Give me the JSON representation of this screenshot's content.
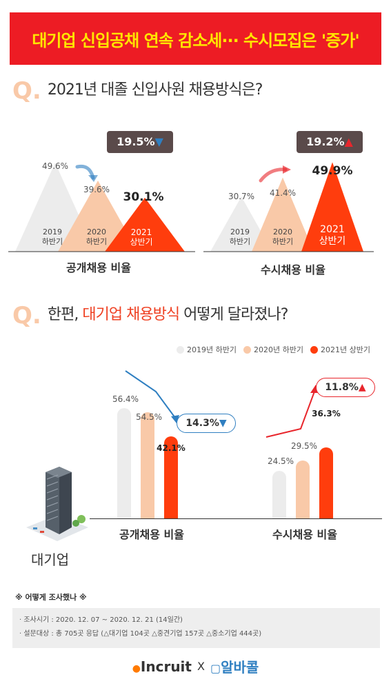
{
  "banner": {
    "title": "대기업 신입공채 연속 감소세··· 수시모집은 '증가'"
  },
  "q1": {
    "mark": "Q.",
    "text": "2021년 대졸 신입사원 채용방식은?"
  },
  "q2": {
    "mark": "Q.",
    "text_pre": "한편, ",
    "text_hl": "대기업 채용방식",
    "text_post": " 어떻게 달라졌나?"
  },
  "colors": {
    "y2019": "#ececec",
    "y2020": "#f9c9a8",
    "y2021": "#ff3d0d",
    "banner": "#ed1c24",
    "banner_text": "#ffe600",
    "badge": "#5a4a4a",
    "down": "#2f7fc1",
    "up": "#e8262c"
  },
  "chart_data": [
    {
      "type": "area",
      "title": "공개채용 비율",
      "categories": [
        "2019\n하반기",
        "2020\n하반기",
        "2021\n상반기"
      ],
      "category_lines": [
        [
          "2019",
          "하반기"
        ],
        [
          "2020",
          "하반기"
        ],
        [
          "2021",
          "상반기"
        ]
      ],
      "values": [
        49.6,
        39.6,
        30.1
      ],
      "labels": [
        "49.6%",
        "39.6%",
        "30.1%"
      ],
      "change_badge": {
        "text": "19.5%",
        "direction": "down"
      }
    },
    {
      "type": "area",
      "title": "수시채용 비율",
      "categories": [
        "2019\n하반기",
        "2020\n하반기",
        "2021\n상반기"
      ],
      "category_lines": [
        [
          "2019",
          "하반기"
        ],
        [
          "2020",
          "하반기"
        ],
        [
          "2021",
          "상반기"
        ]
      ],
      "values": [
        30.7,
        41.4,
        49.9
      ],
      "labels": [
        "30.7%",
        "41.4%",
        "49.9%"
      ],
      "change_badge": {
        "text": "19.2%",
        "direction": "up"
      }
    },
    {
      "type": "bar",
      "subject": "대기업",
      "legend": [
        "2019년 하반기",
        "2020년 하반기",
        "2021년 상반기"
      ],
      "legend_position": "top-right",
      "groups": [
        {
          "title": "공개채용 비율",
          "values": [
            56.4,
            54.5,
            42.1
          ],
          "labels": [
            "56.4%",
            "54.5%",
            "42.1%"
          ],
          "change": {
            "text": "14.3%",
            "direction": "down"
          }
        },
        {
          "title": "수시채용 비율",
          "values": [
            24.5,
            29.5,
            36.3
          ],
          "labels": [
            "24.5%",
            "29.5%",
            "36.3%"
          ],
          "change": {
            "text": "11.8%",
            "direction": "up"
          }
        }
      ]
    }
  ],
  "survey": {
    "heading": "※ 어떻게 조사했나 ※",
    "period": "· 조사시기 : 2020. 12. 07 ~ 2020. 12. 21 (14일간)",
    "target": "· 설문대상 : 총 705곳 응답 (△대기업 104곳 △중견기업 157곳 △중소기업 444곳)"
  },
  "footer": {
    "brand1": "Incruit",
    "sep": "X",
    "brand2": "알바콜"
  }
}
